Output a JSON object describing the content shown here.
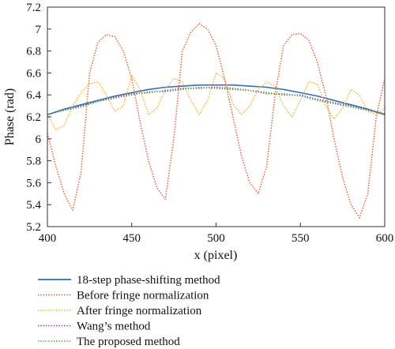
{
  "chart_data": {
    "type": "line",
    "xlabel": "x (pixel)",
    "ylabel": "Phase (rad)",
    "xlim": [
      400,
      600
    ],
    "ylim": [
      5.2,
      7.2
    ],
    "x_ticks": [
      400,
      450,
      500,
      550,
      600
    ],
    "y_ticks": [
      5.2,
      5.4,
      5.6,
      5.8,
      6,
      6.2,
      6.4,
      6.6,
      6.8,
      7,
      7.2
    ],
    "grid": false,
    "legend_position": "below",
    "series": [
      {
        "name": "18-step phase-shifting method",
        "color": "#2f6fb5",
        "style": "solid",
        "x": [
          400,
          410,
          420,
          430,
          440,
          450,
          460,
          470,
          480,
          490,
          500,
          510,
          520,
          530,
          540,
          550,
          560,
          570,
          580,
          590,
          600
        ],
        "y": [
          6.22,
          6.27,
          6.31,
          6.35,
          6.39,
          6.42,
          6.45,
          6.47,
          6.48,
          6.49,
          6.49,
          6.49,
          6.48,
          6.47,
          6.45,
          6.42,
          6.39,
          6.35,
          6.31,
          6.27,
          6.22
        ]
      },
      {
        "name": "Before fringe normalization",
        "color": "#e0603a",
        "style": "dotted",
        "x": [
          400,
          405,
          410,
          415,
          420,
          425,
          430,
          435,
          440,
          445,
          450,
          455,
          460,
          465,
          470,
          475,
          480,
          485,
          490,
          495,
          500,
          505,
          510,
          515,
          520,
          525,
          530,
          535,
          540,
          545,
          550,
          555,
          560,
          565,
          570,
          575,
          580,
          585,
          590,
          595,
          600
        ],
        "y": [
          6.05,
          5.75,
          5.5,
          5.35,
          5.7,
          6.6,
          6.88,
          6.95,
          6.93,
          6.8,
          6.55,
          6.15,
          5.8,
          5.55,
          5.45,
          6.0,
          6.8,
          6.97,
          7.05,
          7.0,
          6.85,
          6.55,
          6.2,
          5.85,
          5.6,
          5.5,
          5.75,
          6.4,
          6.85,
          6.95,
          6.96,
          6.9,
          6.7,
          6.4,
          6.0,
          5.65,
          5.4,
          5.28,
          5.5,
          6.2,
          6.55
        ]
      },
      {
        "name": "After fringe normalization",
        "color": "#f2b134",
        "style": "dotted",
        "x": [
          400,
          405,
          410,
          415,
          420,
          425,
          430,
          435,
          440,
          445,
          450,
          455,
          460,
          465,
          470,
          475,
          480,
          485,
          490,
          495,
          500,
          505,
          510,
          515,
          520,
          525,
          530,
          535,
          540,
          545,
          550,
          555,
          560,
          565,
          570,
          575,
          580,
          585,
          590,
          595,
          600
        ],
        "y": [
          6.22,
          6.08,
          6.12,
          6.3,
          6.42,
          6.5,
          6.52,
          6.4,
          6.25,
          6.3,
          6.58,
          6.45,
          6.22,
          6.28,
          6.45,
          6.55,
          6.52,
          6.35,
          6.22,
          6.35,
          6.6,
          6.55,
          6.32,
          6.22,
          6.3,
          6.45,
          6.52,
          6.48,
          6.3,
          6.2,
          6.35,
          6.52,
          6.5,
          6.3,
          6.18,
          6.28,
          6.45,
          6.4,
          6.25,
          6.22,
          6.28
        ]
      },
      {
        "name": "Wang’s method",
        "color": "#8b44a8",
        "style": "dotted",
        "x": [
          400,
          410,
          420,
          430,
          440,
          450,
          460,
          470,
          480,
          490,
          500,
          510,
          520,
          530,
          540,
          550,
          560,
          570,
          580,
          590,
          600
        ],
        "y": [
          6.22,
          6.26,
          6.3,
          6.34,
          6.38,
          6.41,
          6.42,
          6.44,
          6.46,
          6.46,
          6.47,
          6.46,
          6.44,
          6.42,
          6.4,
          6.4,
          6.36,
          6.33,
          6.3,
          6.26,
          6.23
        ]
      },
      {
        "name": "The proposed method",
        "color": "#5e9e3c",
        "style": "dotted",
        "x": [
          400,
          410,
          420,
          430,
          440,
          450,
          460,
          470,
          480,
          490,
          500,
          510,
          520,
          530,
          540,
          550,
          560,
          570,
          580,
          590,
          600
        ],
        "y": [
          6.22,
          6.26,
          6.29,
          6.34,
          6.37,
          6.4,
          6.43,
          6.43,
          6.45,
          6.47,
          6.46,
          6.45,
          6.44,
          6.41,
          6.41,
          6.39,
          6.35,
          6.32,
          6.29,
          6.26,
          6.22
        ]
      }
    ]
  }
}
